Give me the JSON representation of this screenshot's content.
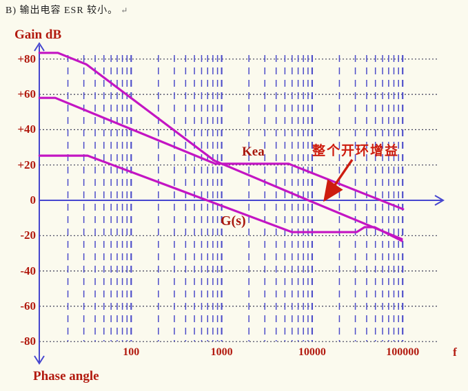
{
  "title": {
    "text": "B) 输出电容 ESR 较小。",
    "mark": "↵"
  },
  "chart_data": {
    "type": "line",
    "x_scale": "log",
    "xlim": [
      10,
      100000
    ],
    "ylim": [
      -80,
      80
    ],
    "xlabel": "f",
    "ylabel_top": "Gain dB",
    "ylabel_bottom": "Phase angle",
    "grid": "on",
    "x_ticks": [
      100,
      1000,
      10000,
      100000
    ],
    "x_tick_labels": [
      "100",
      "1000",
      "10000",
      "100000"
    ],
    "y_ticks": [
      80,
      60,
      40,
      20,
      0,
      -20,
      -40,
      -60,
      -80
    ],
    "y_tick_labels": [
      "+80",
      "+60",
      "+40",
      "+20",
      "0",
      "-20",
      "-40",
      "-60",
      "-80"
    ],
    "series": [
      {
        "name": "整个开环增益",
        "points": [
          [
            9.7,
            83.5
          ],
          [
            15.5,
            83.5
          ],
          [
            32,
            77
          ],
          [
            830,
            22.5
          ],
          [
            9100,
            0
          ],
          [
            98000,
            -22
          ]
        ]
      },
      {
        "name": "Kea",
        "points": [
          [
            9.7,
            58
          ],
          [
            14.5,
            58
          ],
          [
            850,
            20.7
          ],
          [
            5500,
            20.7
          ],
          [
            101000,
            -5
          ]
        ]
      },
      {
        "name": "G(s)",
        "points": [
          [
            9.7,
            25.3
          ],
          [
            33,
            25.3
          ],
          [
            6000,
            -18
          ],
          [
            31000,
            -18
          ],
          [
            38000,
            -15.2
          ],
          [
            49000,
            -15.2
          ],
          [
            98000,
            -23
          ]
        ]
      }
    ],
    "annotation_target_series": "整个开环增益",
    "annotation_points_at_db": 0,
    "colors": {
      "background": "#fbfaee",
      "curve": "#c315c3",
      "grid_vertical": "#4b4bc9",
      "grid_horizontal": "#3b3b55",
      "axis": "#4646cf",
      "tick_label": "#b21a0f",
      "annotation": "#cd1c0e",
      "title": "#1d1d1d"
    }
  }
}
